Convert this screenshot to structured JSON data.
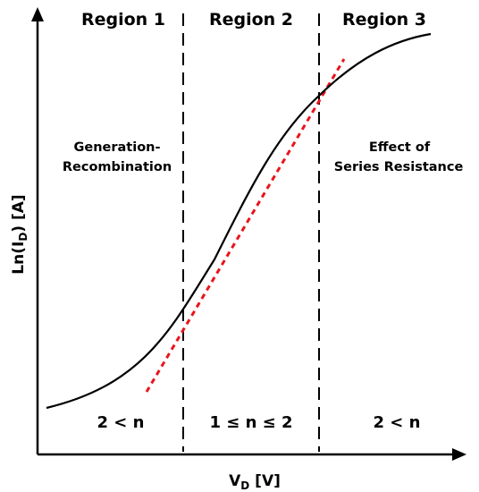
{
  "regions": [
    {
      "title": "Region 1",
      "note_lines": [
        "Generation-",
        "Recombination"
      ],
      "ideality": "2 < n"
    },
    {
      "title": "Region 2",
      "note_lines": [],
      "ideality": "1 ≤ n ≤ 2"
    },
    {
      "title": "Region 3",
      "note_lines": [
        "Effect of",
        "Series Resistance"
      ],
      "ideality": "2 < n"
    }
  ],
  "axes": {
    "x_label_main": "V",
    "x_label_sub": "D",
    "x_label_unit": " [V]",
    "y_label_main": "Ln(I",
    "y_label_sub": "D",
    "y_label_unit": ")  [A]"
  },
  "colors": {
    "curve": "#000000",
    "fit_line": "#e8151b",
    "divider": "#000000",
    "axis": "#000000"
  }
}
